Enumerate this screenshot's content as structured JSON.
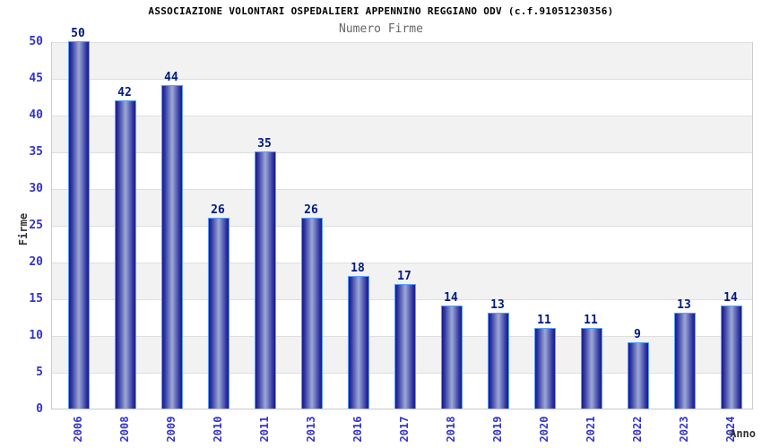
{
  "header": {
    "title": "ASSOCIAZIONE VOLONTARI OSPEDALIERI APPENNINO REGGIANO ODV (c.f.91051230356)",
    "subtitle": "Numero Firme"
  },
  "chart_data": {
    "type": "bar",
    "title": "Numero Firme",
    "categories": [
      "2006",
      "2008",
      "2009",
      "2010",
      "2011",
      "2013",
      "2016",
      "2017",
      "2018",
      "2019",
      "2020",
      "2021",
      "2022",
      "2023",
      "2024"
    ],
    "values": [
      50,
      42,
      44,
      26,
      35,
      26,
      18,
      17,
      14,
      13,
      11,
      11,
      9,
      13,
      14
    ],
    "xlabel": "Anno",
    "ylabel": "Firme",
    "ylim": [
      0,
      50
    ],
    "ytick_step": 5,
    "grid": true,
    "legend": "none",
    "stripe_bands": true,
    "colors": {
      "bar_edge": "#171b8c",
      "bar_center": "#9da9d6",
      "bar_border": "#5b9eff",
      "tick_label": "#3333cc",
      "value_label": "#001a80",
      "stripe": "#f2f2f2",
      "gridline": "#dedede",
      "subtitle": "#666666",
      "axis_title": "#333333"
    }
  }
}
